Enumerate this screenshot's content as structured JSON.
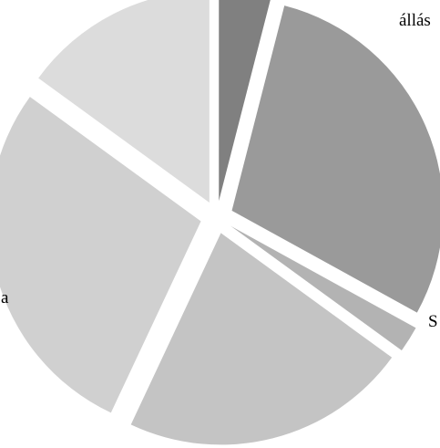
{
  "chart_data": {
    "type": "pie",
    "labels": [
      "állás",
      "S",
      "",
      "",
      "a",
      ""
    ],
    "values": [
      4,
      29,
      2,
      22,
      28,
      15
    ],
    "colors": [
      "#808080",
      "#9a9a9a",
      "#b3b3b3",
      "#c4c4c4",
      "#d0d0d0",
      "#dcdcdc"
    ],
    "start_angle_deg": 0,
    "direction": "clockwise",
    "legend": "none",
    "slices_exploded": true
  }
}
